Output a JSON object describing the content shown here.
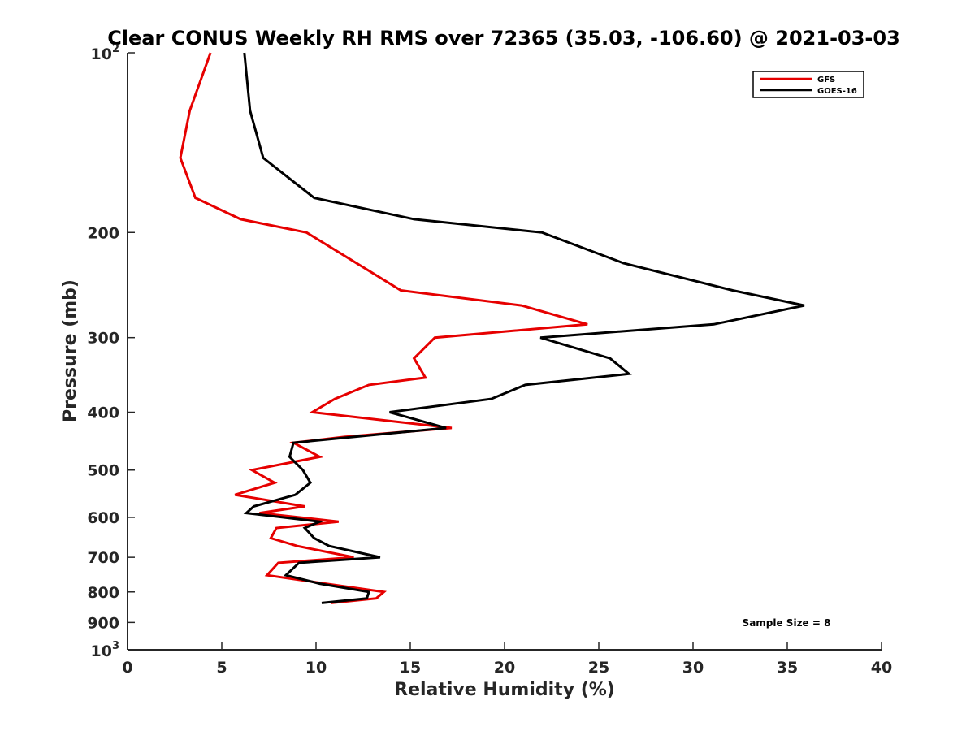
{
  "chart_data": {
    "type": "line",
    "title": "Clear CONUS Weekly RH RMS over 72365 (35.03, -106.60) @ 2021-03-03",
    "xlabel": "Relative Humidity (%)",
    "ylabel": "Pressure (mb)",
    "xlim": [
      0,
      40
    ],
    "ylim": [
      100,
      1000
    ],
    "y_scale": "log",
    "y_reversed": true,
    "x_ticks": [
      0,
      5,
      10,
      15,
      20,
      25,
      30,
      35,
      40
    ],
    "x_tick_labels": [
      "0",
      "5",
      "10",
      "15",
      "20",
      "25",
      "30",
      "35",
      "40"
    ],
    "y_ticks": [
      200,
      300,
      400,
      500,
      600,
      700,
      800,
      900
    ],
    "y_tick_labels": [
      "200",
      "300",
      "400",
      "500",
      "600",
      "700",
      "800",
      "900"
    ],
    "y_end_labels": [
      {
        "value": 100,
        "base": "10",
        "exp": "2"
      },
      {
        "value": 1000,
        "base": "10",
        "exp": "3"
      }
    ],
    "grid": false,
    "legend_position": "top-right",
    "series": [
      {
        "name": "GFS",
        "color": "#e60000",
        "points": [
          [
            4.4,
            100
          ],
          [
            3.3,
            125
          ],
          [
            2.8,
            150
          ],
          [
            3.6,
            175
          ],
          [
            6.0,
            190
          ],
          [
            9.5,
            200
          ],
          [
            14.5,
            250
          ],
          [
            20.9,
            265
          ],
          [
            24.4,
            285
          ],
          [
            16.3,
            300
          ],
          [
            15.2,
            325
          ],
          [
            15.8,
            350
          ],
          [
            12.8,
            360
          ],
          [
            11.0,
            380
          ],
          [
            9.8,
            400
          ],
          [
            17.2,
            425
          ],
          [
            11.5,
            440
          ],
          [
            8.8,
            450
          ],
          [
            10.2,
            475
          ],
          [
            6.6,
            500
          ],
          [
            7.8,
            525
          ],
          [
            5.7,
            550
          ],
          [
            9.4,
            575
          ],
          [
            7.0,
            590
          ],
          [
            11.2,
            610
          ],
          [
            7.9,
            625
          ],
          [
            7.6,
            650
          ],
          [
            9.0,
            670
          ],
          [
            12.0,
            700
          ],
          [
            8.0,
            715
          ],
          [
            7.4,
            750
          ],
          [
            10.5,
            775
          ],
          [
            13.6,
            800
          ],
          [
            13.2,
            820
          ],
          [
            10.8,
            835
          ]
        ]
      },
      {
        "name": "GOES-16",
        "color": "#000000",
        "points": [
          [
            6.2,
            100
          ],
          [
            6.5,
            125
          ],
          [
            7.2,
            150
          ],
          [
            9.9,
            175
          ],
          [
            15.2,
            190
          ],
          [
            22.0,
            200
          ],
          [
            26.3,
            225
          ],
          [
            32.1,
            250
          ],
          [
            35.9,
            265
          ],
          [
            31.1,
            285
          ],
          [
            21.9,
            300
          ],
          [
            25.6,
            325
          ],
          [
            26.6,
            345
          ],
          [
            21.1,
            360
          ],
          [
            19.3,
            380
          ],
          [
            13.9,
            400
          ],
          [
            16.9,
            425
          ],
          [
            12.0,
            440
          ],
          [
            8.8,
            450
          ],
          [
            8.6,
            475
          ],
          [
            9.3,
            500
          ],
          [
            9.7,
            525
          ],
          [
            8.9,
            550
          ],
          [
            6.7,
            575
          ],
          [
            6.3,
            590
          ],
          [
            10.2,
            610
          ],
          [
            9.4,
            625
          ],
          [
            9.9,
            650
          ],
          [
            10.7,
            670
          ],
          [
            13.4,
            700
          ],
          [
            9.1,
            715
          ],
          [
            8.4,
            750
          ],
          [
            10.2,
            775
          ],
          [
            12.8,
            800
          ],
          [
            12.7,
            820
          ],
          [
            10.3,
            835
          ]
        ]
      }
    ],
    "annotation": "Sample Size = 8"
  }
}
